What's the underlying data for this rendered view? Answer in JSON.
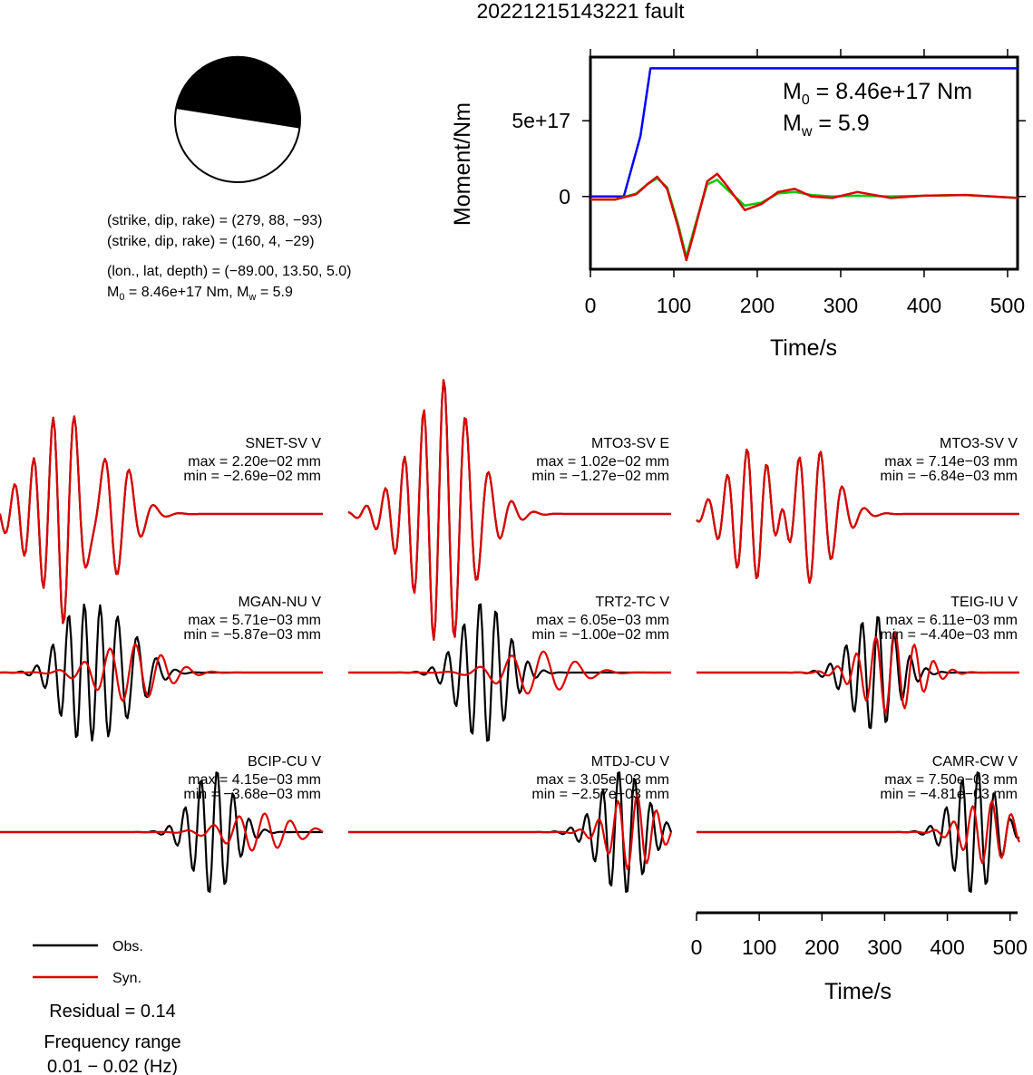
{
  "title": "20221215143221 fault",
  "beachball": {
    "line1": "(strike, dip, rake) = (279, 88, −93)",
    "line2": "(strike, dip, rake) = (160, 4, −29)",
    "line3": "(lon., lat, depth) = (−89.00, 13.50, 5.0)",
    "line4_m0": "M",
    "line4_sub0": "0",
    "line4_mid": " = 8.46e+17 Nm, M",
    "line4_subw": "w",
    "line4_end": " = 5.9"
  },
  "moment_panel": {
    "m0_prefix": "M",
    "m0_sub": "0",
    "m0_value": " = 8.46e+17 Nm",
    "mw_prefix": "M",
    "mw_sub": "w",
    "mw_value": " = 5.9",
    "ylabel": "Moment/Nm",
    "xlabel": "Time/s",
    "xticks": [
      "0",
      "100",
      "200",
      "300",
      "400",
      "500"
    ],
    "yticks": [
      "0",
      "5e+17"
    ]
  },
  "chart_data": [
    {
      "type": "line",
      "title": "",
      "xlabel": "Time/s",
      "ylabel": "Moment/Nm",
      "xlim": [
        0,
        512
      ],
      "ylim": [
        -4.8e+17,
        9.2e+17
      ],
      "series": [
        {
          "color": "#0000ff",
          "x": [
            0,
            40,
            60,
            72,
            512
          ],
          "y": [
            0,
            0,
            4e+17,
            8.46e+17,
            8.46e+17
          ]
        },
        {
          "color": "#00cc00",
          "x": [
            0,
            30,
            55,
            68,
            80,
            92,
            105,
            115,
            125,
            140,
            152,
            165,
            185,
            205,
            225,
            245,
            265,
            290,
            320,
            360,
            400,
            450,
            512
          ],
          "y": [
            -2e+16,
            -2e+16,
            2e+16,
            8e+16,
            1.2e+17,
            6e+16,
            -1.8e+17,
            -4e+17,
            -2e+17,
            8e+16,
            1.1e+17,
            4e+16,
            -6e+16,
            -4e+16,
            2e+16,
            3e+16,
            1e+16,
            0.0,
            5000000000000000.0,
            0.0,
            5000000000000000.0,
            1e+16,
            -1e+16
          ]
        },
        {
          "color": "#dd0000",
          "x": [
            0,
            30,
            55,
            68,
            80,
            92,
            105,
            115,
            125,
            140,
            152,
            165,
            185,
            205,
            225,
            245,
            265,
            290,
            320,
            360,
            400,
            450,
            512
          ],
          "y": [
            -2e+16,
            -2e+16,
            1.5e+16,
            8e+16,
            1.3e+17,
            5e+16,
            -2e+17,
            -4.2e+17,
            -2.2e+17,
            1e+17,
            1.5e+17,
            6e+16,
            -9e+16,
            -5e+16,
            3e+16,
            5e+16,
            0.0,
            -1e+16,
            3e+16,
            -1e+16,
            5000000000000000.0,
            1e+16,
            -1e+16
          ]
        }
      ]
    }
  ],
  "stations": [
    {
      "name": "SNET-SV V",
      "max": "max = 2.20e−02 mm",
      "min": "min = −2.69e−02 mm"
    },
    {
      "name": "MTO3-SV E",
      "max": "max = 1.02e−02 mm",
      "min": "min = −1.27e−02 mm"
    },
    {
      "name": "MTO3-SV V",
      "max": "max = 7.14e−03 mm",
      "min": "min = −6.84e−03 mm"
    },
    {
      "name": "MGAN-NU V",
      "max": "max = 5.71e−03 mm",
      "min": "min = −5.87e−03 mm"
    },
    {
      "name": "TRT2-TC V",
      "max": "max = 6.05e−03 mm",
      "min": "min = −1.00e−02 mm"
    },
    {
      "name": "TEIG-IU V",
      "max": "max = 6.11e−03 mm",
      "min": "min = −4.40e−03 mm"
    },
    {
      "name": "BCIP-CU V",
      "max": "max = 4.15e−03 mm",
      "min": "min = −3.68e−03 mm"
    },
    {
      "name": "MTDJ-CU V",
      "max": "max = 3.05e−03 mm",
      "min": "min = −2.57e−03 mm"
    },
    {
      "name": "CAMR-CW V",
      "max": "max = 7.50e−03 mm",
      "min": "min = −4.81e−03 mm"
    }
  ],
  "waveform_axis": {
    "xlabel": "Time/s",
    "xticks": [
      "0",
      "100",
      "200",
      "300",
      "400",
      "500"
    ]
  },
  "legend": {
    "obs": "Obs.",
    "syn": "Syn.",
    "obs_color": "#000000",
    "syn_color": "#dd0000"
  },
  "residual": "Residual = 0.14",
  "freq_label": "Frequency range",
  "freq_value": "0.01 − 0.02 (Hz)"
}
